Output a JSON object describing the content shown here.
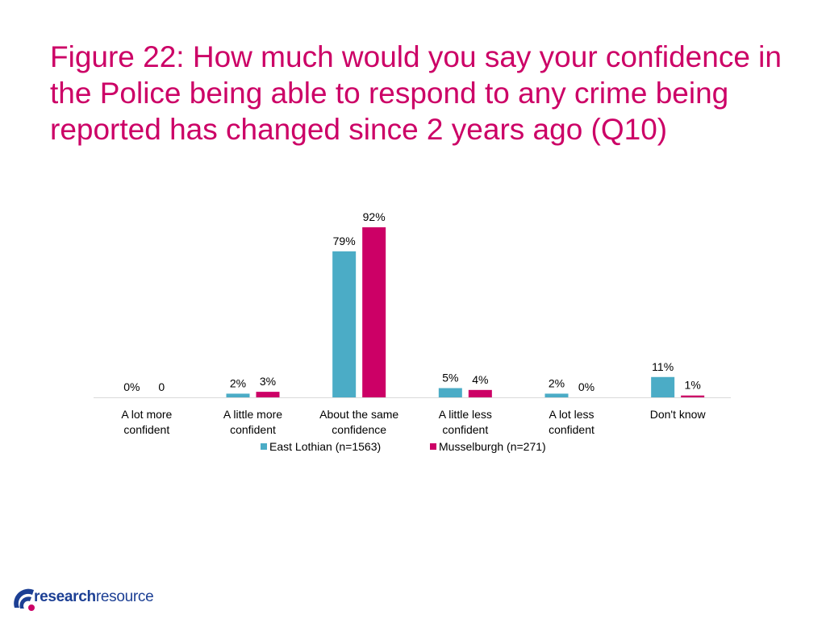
{
  "slide": {
    "title": "Figure 22: How much would you say your confidence in the Police being able to respond to any crime being reported has changed since 2 years ago (Q10)"
  },
  "colors": {
    "title": "#cc0066",
    "east_lothian": "#4bacc6",
    "musselburgh": "#cc0066",
    "axis": "#d9d9d9"
  },
  "chart_data": {
    "type": "bar",
    "title": "",
    "xlabel": "",
    "ylabel": "",
    "ylim": [
      0,
      100
    ],
    "grid": false,
    "legend_position": "bottom",
    "categories": [
      [
        "A lot more",
        "confident"
      ],
      [
        "A little more",
        "confident"
      ],
      [
        "About the same",
        "confidence"
      ],
      [
        "A little less",
        "confident"
      ],
      [
        "A lot less",
        "confident"
      ],
      [
        "Don't know"
      ]
    ],
    "series": [
      {
        "name": "East Lothian (n=1563)",
        "color": "#4bacc6",
        "values": [
          0,
          2,
          79,
          5,
          2,
          11
        ],
        "labels": [
          "0%",
          "2%",
          "79%",
          "5%",
          "2%",
          "11%"
        ]
      },
      {
        "name": "Musselburgh (n=271)",
        "color": "#cc0066",
        "values": [
          0,
          3,
          92,
          4,
          0,
          1
        ],
        "labels": [
          "0",
          "3%",
          "92%",
          "4%",
          "0%",
          "1%"
        ]
      }
    ]
  },
  "logo": {
    "bold": "research",
    "light": "resource"
  }
}
